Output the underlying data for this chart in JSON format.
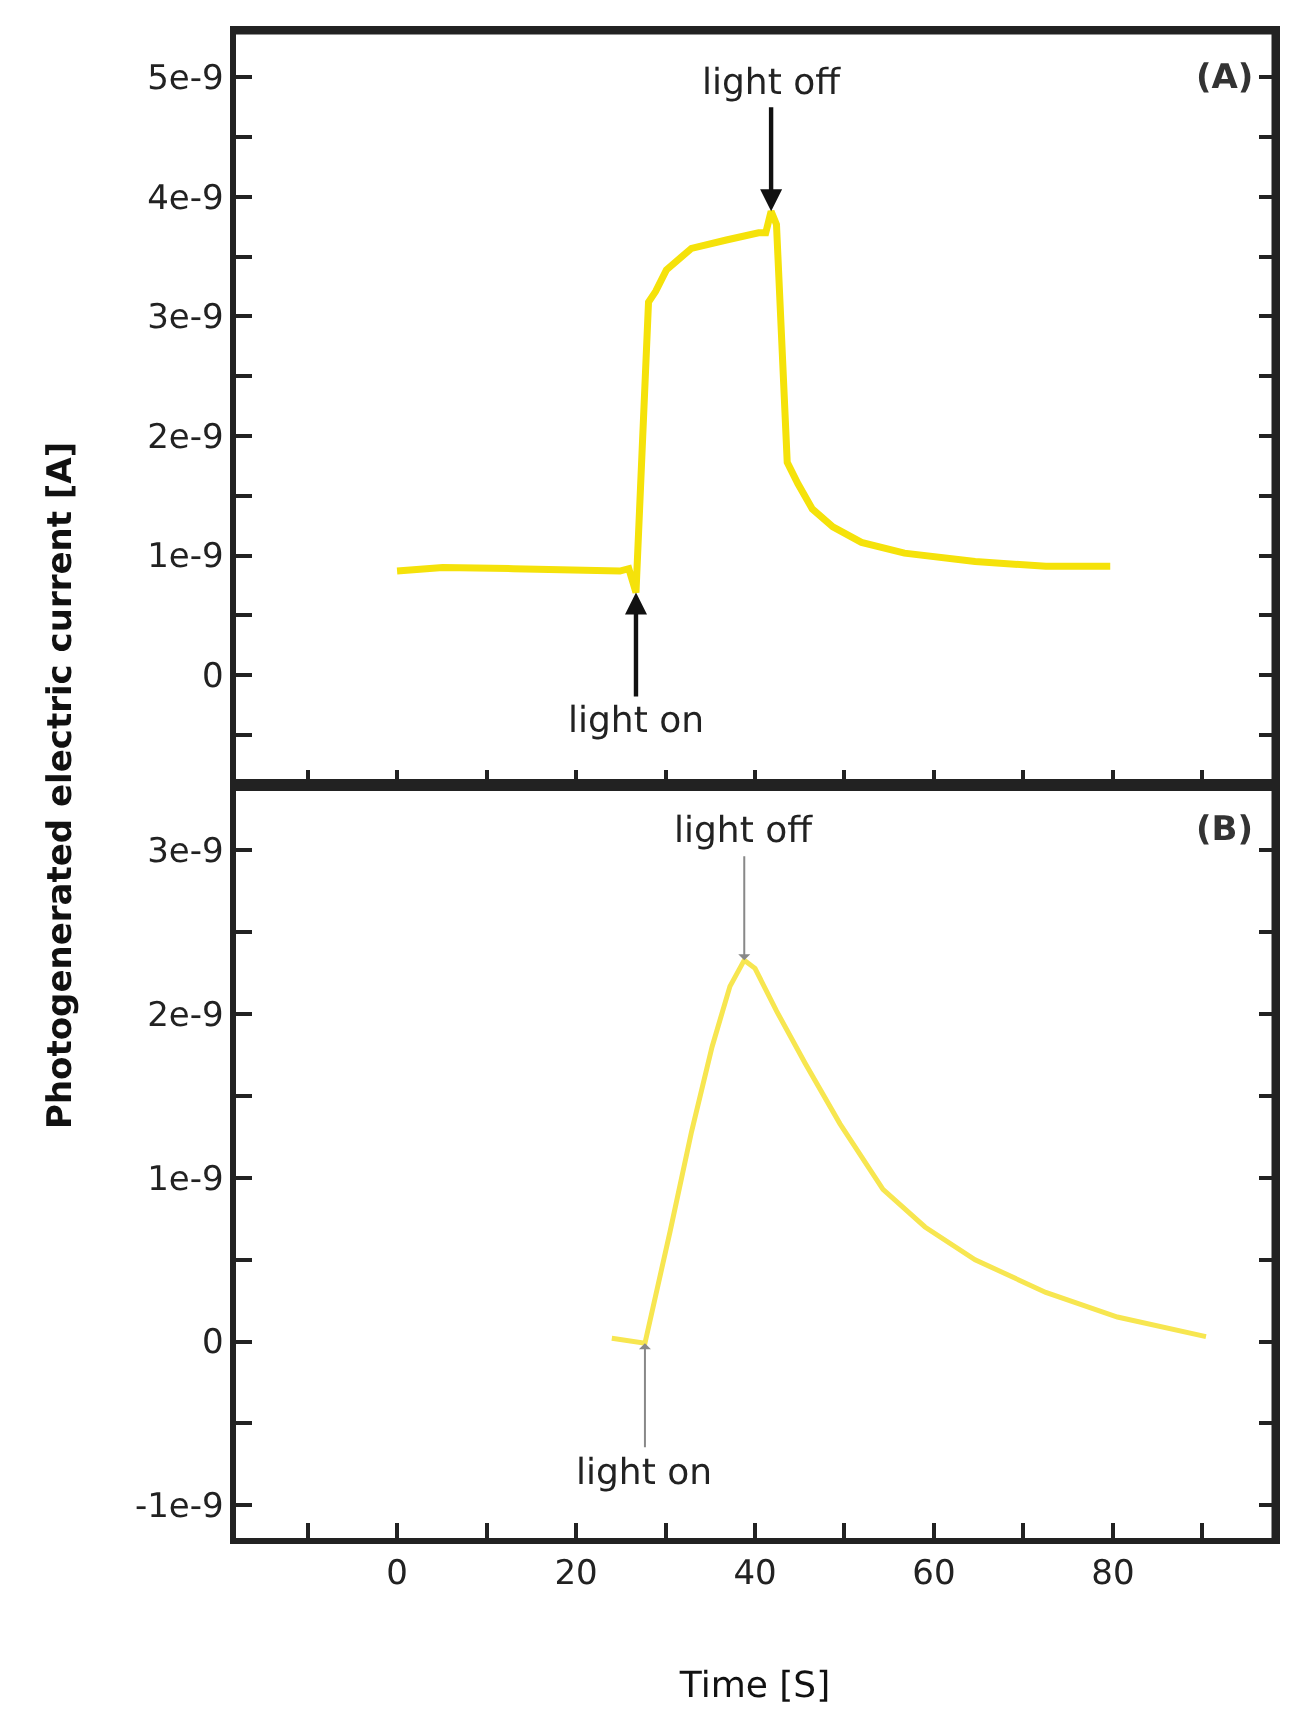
{
  "chart_data": [
    {
      "type": "line",
      "ylabel": "Photogenerated electric current [A]",
      "tick_labels": "y",
      "grid": false,
      "marker": "none",
      "line_style": "solid",
      "xlim": [
        -18,
        98
      ],
      "xticks": [
        {
          "value": -10,
          "label": null
        },
        {
          "value": 0,
          "label": null
        },
        {
          "value": 10,
          "label": null
        },
        {
          "value": 20,
          "label": null
        },
        {
          "value": 30,
          "label": null
        },
        {
          "value": 40,
          "label": null
        },
        {
          "value": 50,
          "label": null
        },
        {
          "value": 60,
          "label": null
        },
        {
          "value": 70,
          "label": null
        },
        {
          "value": 80,
          "label": null
        },
        {
          "value": 90,
          "label": null
        }
      ],
      "ylim": [
        -9.2e-10,
        5.38e-09
      ],
      "yticks": [
        {
          "value": -5e-10,
          "label": null
        },
        {
          "value": 0,
          "label": "0"
        },
        {
          "value": 5e-10,
          "label": null
        },
        {
          "value": 1e-09,
          "label": "1e-9"
        },
        {
          "value": 1.5e-09,
          "label": null
        },
        {
          "value": 2e-09,
          "label": "2e-9"
        },
        {
          "value": 2.5e-09,
          "label": null
        },
        {
          "value": 3e-09,
          "label": "3e-9"
        },
        {
          "value": 3.5e-09,
          "label": null
        },
        {
          "value": 4e-09,
          "label": "4e-9"
        },
        {
          "value": 4.5e-09,
          "label": null
        },
        {
          "value": 5e-09,
          "label": "5e-9"
        }
      ],
      "series": [
        {
          "color": "#f5e20a",
          "x": [
            0,
            5.1,
            13,
            24.9,
            25.9,
            26.7,
            28.1,
            28.9,
            30.1,
            32.9,
            36.8,
            40.4,
            41.2,
            41.8,
            42.4,
            43.6,
            44.8,
            46.4,
            48.7,
            51.9,
            56.7,
            64.6,
            72.5,
            79.7
          ],
          "values": [
            8.7e-10,
            9e-10,
            8.9e-10,
            8.7e-10,
            8.9e-10,
            6.9e-10,
            3.12e-09,
            3.21e-09,
            3.39e-09,
            3.57e-09,
            3.64e-09,
            3.7e-09,
            3.7e-09,
            3.88e-09,
            3.77e-09,
            1.78e-09,
            1.6e-09,
            1.39e-09,
            1.24e-09,
            1.11e-09,
            1.02e-09,
            9.5e-10,
            9.1e-10,
            9.1e-10
          ]
        }
      ],
      "annotations": [
        {
          "text": "light on",
          "x": 26.7,
          "y": 6.9e-10
        },
        {
          "text": "light off",
          "x": 41.8,
          "y": 3.88e-09
        },
        "(A)"
      ]
    },
    {
      "type": "line",
      "xlabel": "Time [S]",
      "grid": false,
      "marker": "none",
      "line_style": "solid",
      "xlim": [
        -18,
        98
      ],
      "xticks": [
        {
          "value": -10,
          "label": null
        },
        {
          "value": 0,
          "label": "0"
        },
        {
          "value": 10,
          "label": null
        },
        {
          "value": 20,
          "label": "20"
        },
        {
          "value": 30,
          "label": null
        },
        {
          "value": 40,
          "label": "40"
        },
        {
          "value": 50,
          "label": null
        },
        {
          "value": 60,
          "label": "60"
        },
        {
          "value": 70,
          "label": null
        },
        {
          "value": 80,
          "label": "80"
        },
        {
          "value": 90,
          "label": null
        }
      ],
      "ylim": [
        -1.2e-09,
        3.4e-09
      ],
      "yticks": [
        {
          "value": -1e-09,
          "label": "-1e-9"
        },
        {
          "value": -5e-10,
          "label": null
        },
        {
          "value": 0,
          "label": "0"
        },
        {
          "value": 5e-10,
          "label": null
        },
        {
          "value": 1e-09,
          "label": "1e-9"
        },
        {
          "value": 1.5e-09,
          "label": null
        },
        {
          "value": 2e-09,
          "label": "2e-9"
        },
        {
          "value": 2.5e-09,
          "label": null
        },
        {
          "value": 3e-09,
          "label": "3e-9"
        }
      ],
      "series": [
        {
          "color": "#f7e650",
          "x": [
            24.0,
            27.7,
            30.5,
            32.9,
            35.2,
            37.2,
            38.8,
            40.0,
            42.4,
            45.6,
            49.5,
            54.3,
            59.0,
            64.6,
            72.5,
            80.5,
            90.4
          ],
          "values": [
            2e-11,
            -1e-11,
            6.7e-10,
            1.28e-09,
            1.8e-09,
            2.17e-09,
            2.33e-09,
            2.28e-09,
            2.02e-09,
            1.7e-09,
            1.33e-09,
            9.3e-10,
            7e-10,
            5e-10,
            3e-10,
            1.5e-10,
            3e-11
          ]
        }
      ],
      "annotations": [
        {
          "text": "light on",
          "x": 27.7,
          "y": -1e-11
        },
        {
          "text": "light off",
          "x": 38.8,
          "y": 2.33e-09
        },
        "(B)"
      ]
    }
  ]
}
